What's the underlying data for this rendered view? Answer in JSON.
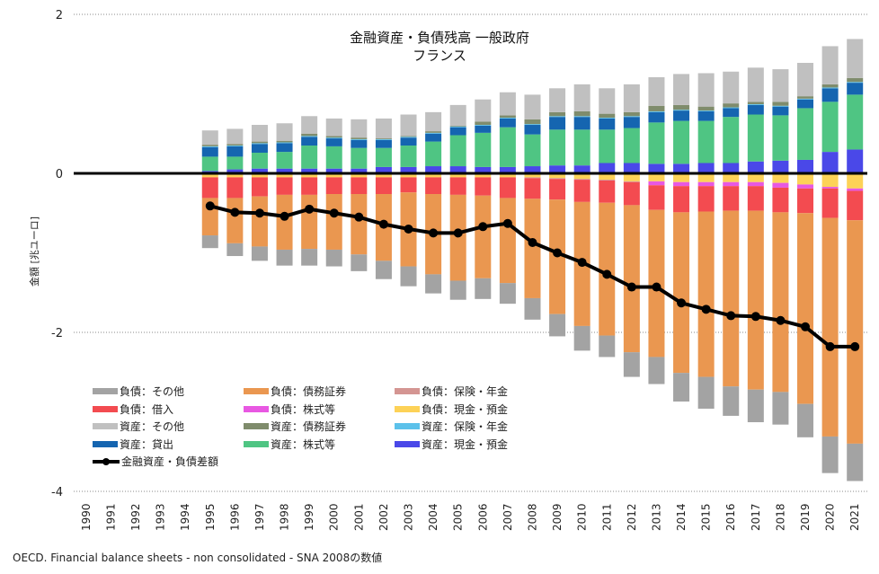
{
  "chart_data": {
    "type": "bar",
    "stacked": true,
    "title": "金融資産・負債残高 一般政府",
    "subtitle": "フランス",
    "ylabel": "金額 [兆ユーロ]",
    "xlabel": "",
    "ylim": [
      -4,
      2
    ],
    "yticks": [
      "2",
      "0",
      "-2",
      "-4"
    ],
    "grid": "dotted horizontal",
    "legend_position": "bottom-left",
    "categories": [
      "1990",
      "1991",
      "1992",
      "1993",
      "1994",
      "1995",
      "1996",
      "1997",
      "1998",
      "1999",
      "2000",
      "2001",
      "2002",
      "2003",
      "2004",
      "2005",
      "2006",
      "2007",
      "2008",
      "2009",
      "2010",
      "2011",
      "2012",
      "2013",
      "2014",
      "2015",
      "2016",
      "2017",
      "2018",
      "2019",
      "2020",
      "2021"
    ],
    "series": [
      {
        "name": "負債：その他",
        "color": "#a3a3a3",
        "values": [
          null,
          null,
          null,
          null,
          null,
          -0.16,
          -0.16,
          -0.18,
          -0.2,
          -0.21,
          -0.21,
          -0.21,
          -0.23,
          -0.25,
          -0.24,
          -0.24,
          -0.26,
          -0.26,
          -0.27,
          -0.28,
          -0.31,
          -0.27,
          -0.31,
          -0.34,
          -0.36,
          -0.4,
          -0.37,
          -0.41,
          -0.41,
          -0.42,
          -0.46,
          -0.47
        ]
      },
      {
        "name": "負債：借入",
        "color": "#f34b50",
        "values": [
          null,
          null,
          null,
          null,
          null,
          -0.26,
          -0.26,
          -0.24,
          -0.22,
          -0.22,
          -0.21,
          -0.21,
          -0.21,
          -0.19,
          -0.21,
          -0.22,
          -0.23,
          -0.26,
          -0.26,
          -0.26,
          -0.28,
          -0.28,
          -0.29,
          -0.31,
          -0.33,
          -0.32,
          -0.31,
          -0.31,
          -0.31,
          -0.31,
          -0.37,
          -0.37
        ]
      },
      {
        "name": "資産：その他",
        "color": "#c0c0c0",
        "values": [
          null,
          null,
          null,
          null,
          null,
          0.18,
          0.19,
          0.21,
          0.22,
          0.22,
          0.22,
          0.23,
          0.25,
          0.27,
          0.24,
          0.26,
          0.28,
          0.29,
          0.31,
          0.3,
          0.34,
          0.32,
          0.35,
          0.36,
          0.39,
          0.42,
          0.4,
          0.43,
          0.41,
          0.42,
          0.48,
          0.49
        ]
      },
      {
        "name": "資産：貸出",
        "color": "#1565b0",
        "values": [
          null,
          null,
          null,
          null,
          null,
          0.12,
          0.13,
          0.11,
          0.11,
          0.11,
          0.1,
          0.1,
          0.1,
          0.1,
          0.1,
          0.1,
          0.09,
          0.11,
          0.12,
          0.16,
          0.16,
          0.14,
          0.14,
          0.13,
          0.13,
          0.12,
          0.11,
          0.12,
          0.11,
          0.11,
          0.17,
          0.15
        ]
      },
      {
        "name": "負債：債務証券",
        "color": "#ea9750",
        "values": [
          null,
          null,
          null,
          null,
          null,
          -0.47,
          -0.57,
          -0.63,
          -0.69,
          -0.68,
          -0.7,
          -0.76,
          -0.84,
          -0.93,
          -1.01,
          -1.08,
          -1.04,
          -1.07,
          -1.25,
          -1.44,
          -1.56,
          -1.67,
          -1.85,
          -1.85,
          -2.02,
          -2.08,
          -2.21,
          -2.25,
          -2.26,
          -2.4,
          -2.75,
          -2.81
        ]
      },
      {
        "name": "負債：株式等",
        "color": "#e858e2",
        "values": [
          null,
          null,
          null,
          null,
          null,
          0,
          0,
          0,
          0,
          0,
          0,
          0,
          0,
          0,
          0,
          0,
          0,
          0,
          0,
          0,
          0,
          0,
          0,
          -0.05,
          -0.05,
          -0.05,
          -0.05,
          -0.05,
          -0.06,
          -0.05,
          -0.02,
          -0.03
        ]
      },
      {
        "name": "資産：債務証券",
        "color": "#7f8c6c",
        "values": [
          null,
          null,
          null,
          null,
          null,
          0.02,
          0.02,
          0.02,
          0.02,
          0.03,
          0.02,
          0.02,
          0.01,
          0.01,
          0.02,
          0.01,
          0.04,
          0.03,
          0.06,
          0.05,
          0.06,
          0.05,
          0.05,
          0.07,
          0.06,
          0.05,
          0.05,
          0.03,
          0.05,
          0.03,
          0.04,
          0.05
        ]
      },
      {
        "name": "資産：株式等",
        "color": "#4fc583",
        "values": [
          null,
          null,
          null,
          null,
          null,
          0.18,
          0.16,
          0.2,
          0.21,
          0.29,
          0.28,
          0.26,
          0.24,
          0.27,
          0.31,
          0.39,
          0.43,
          0.5,
          0.4,
          0.45,
          0.45,
          0.42,
          0.44,
          0.52,
          0.54,
          0.53,
          0.58,
          0.59,
          0.57,
          0.65,
          0.63,
          0.69
        ]
      },
      {
        "name": "負債：保険・年金",
        "color": "#d49592",
        "values": [
          null,
          null,
          null,
          null,
          null,
          0,
          0,
          0,
          0,
          0,
          0,
          0,
          0,
          0,
          0,
          0,
          0,
          0,
          -0.01,
          -0.01,
          -0.01,
          -0.01,
          -0.01,
          0,
          0,
          0,
          0,
          0,
          0,
          0,
          0,
          0
        ]
      },
      {
        "name": "負債：現金・預金",
        "color": "#fdd257",
        "values": [
          null,
          null,
          null,
          null,
          null,
          -0.05,
          -0.05,
          -0.05,
          -0.05,
          -0.05,
          -0.05,
          -0.05,
          -0.05,
          -0.05,
          -0.05,
          -0.05,
          -0.05,
          -0.05,
          -0.05,
          -0.06,
          -0.07,
          -0.08,
          -0.1,
          -0.1,
          -0.11,
          -0.11,
          -0.11,
          -0.11,
          -0.12,
          -0.14,
          -0.17,
          -0.19
        ]
      },
      {
        "name": "資産：保険・年金",
        "color": "#5cc1ea",
        "values": [
          null,
          null,
          null,
          null,
          null,
          0.01,
          0.01,
          0.01,
          0.01,
          0.01,
          0.01,
          0.01,
          0.01,
          0.01,
          0.01,
          0.01,
          0.01,
          0.01,
          0.01,
          0.01,
          0.01,
          0.01,
          0.01,
          0.01,
          0.01,
          0.01,
          0.01,
          0.01,
          0.01,
          0.01,
          0.01,
          0.01
        ]
      },
      {
        "name": "資産：現金・預金",
        "color": "#4a48e8",
        "values": [
          null,
          null,
          null,
          null,
          null,
          0.03,
          0.05,
          0.06,
          0.06,
          0.06,
          0.06,
          0.06,
          0.08,
          0.08,
          0.09,
          0.09,
          0.08,
          0.08,
          0.09,
          0.1,
          0.1,
          0.13,
          0.13,
          0.12,
          0.12,
          0.13,
          0.13,
          0.15,
          0.16,
          0.17,
          0.27,
          0.3
        ]
      }
    ],
    "line": {
      "name": "金融資産・負債差額",
      "color": "#000000",
      "values": [
        null,
        null,
        null,
        null,
        null,
        -0.41,
        -0.49,
        -0.5,
        -0.54,
        -0.45,
        -0.5,
        -0.55,
        -0.64,
        -0.7,
        -0.75,
        -0.75,
        -0.67,
        -0.63,
        -0.87,
        -1.0,
        -1.12,
        -1.27,
        -1.43,
        -1.43,
        -1.63,
        -1.71,
        -1.79,
        -1.8,
        -1.85,
        -1.93,
        -2.18,
        -2.18
      ]
    },
    "source": "OECD. Financial balance sheets - non consolidated - SNA 2008の数値"
  }
}
